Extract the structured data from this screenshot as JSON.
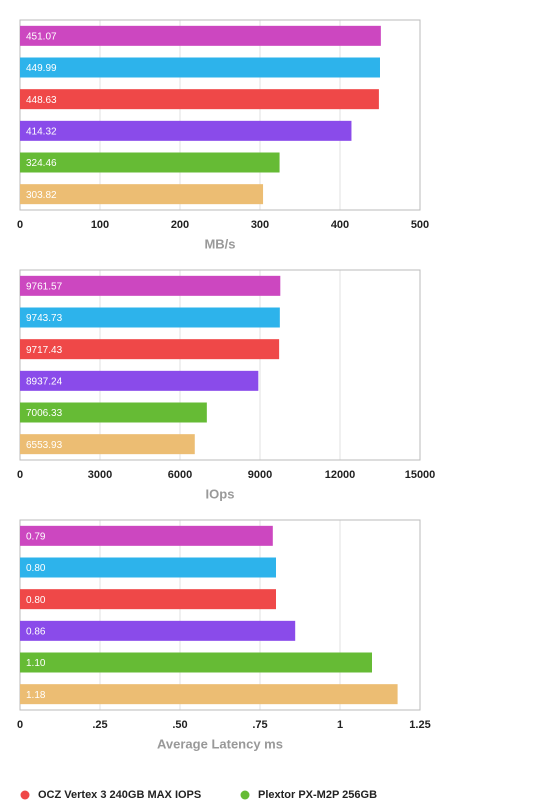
{
  "chart_data": [
    {
      "type": "bar",
      "orientation": "horizontal",
      "x_label": "MB/s",
      "values": [
        451.07,
        449.99,
        448.63,
        414.32,
        324.46,
        303.82
      ],
      "colors": [
        "#cc47c0",
        "#2db3eb",
        "#ef4848",
        "#8a4bea",
        "#66bb35",
        "#ecbd73"
      ],
      "xlim": [
        0,
        500
      ],
      "xticks": [
        0,
        100,
        200,
        300,
        400,
        500
      ],
      "grid": true
    },
    {
      "type": "bar",
      "orientation": "horizontal",
      "x_label": "IOps",
      "values": [
        9761.57,
        9743.73,
        9717.43,
        8937.24,
        7006.33,
        6553.93
      ],
      "colors": [
        "#cc47c0",
        "#2db3eb",
        "#ef4848",
        "#8a4bea",
        "#66bb35",
        "#ecbd73"
      ],
      "xlim": [
        0,
        15000
      ],
      "xticks": [
        0,
        3000,
        6000,
        9000,
        12000,
        15000
      ],
      "grid": true
    },
    {
      "type": "bar",
      "orientation": "horizontal",
      "x_label": "Average Latency ms",
      "values": [
        0.79,
        0.8,
        0.8,
        0.86,
        1.1,
        1.18
      ],
      "value_labels": [
        "0.79",
        "0.80",
        "0.80",
        "0.86",
        "1.10",
        "1.18"
      ],
      "colors": [
        "#cc47c0",
        "#2db3eb",
        "#ef4848",
        "#8a4bea",
        "#66bb35",
        "#ecbd73"
      ],
      "xlim": [
        0,
        1.25
      ],
      "xticks": [
        0,
        {
          "value": 0.25,
          "label": ".25"
        },
        {
          "value": 0.5,
          "label": ".50"
        },
        {
          "value": 0.75,
          "label": ".75"
        },
        1,
        1.25
      ],
      "grid": true
    }
  ],
  "legend": [
    {
      "name": "OCZ Vertex 3 240GB MAX IOPS",
      "color": "#ef4848"
    },
    {
      "name": "Plextor PX-M2P 256GB",
      "color": "#66bb35"
    }
  ]
}
